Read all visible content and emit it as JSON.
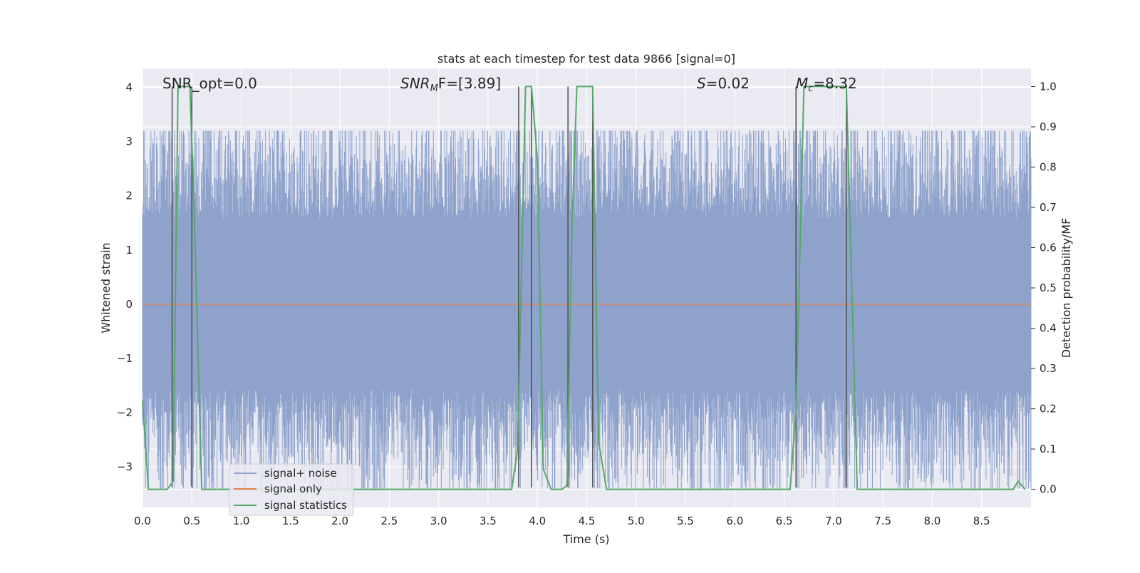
{
  "chart_data": {
    "type": "line",
    "title": "stats at each timestep for test data 9866 [signal=0]",
    "xlabel": "Time (s)",
    "ylabel_left": "Whitened strain",
    "ylabel_right": "Detection probability/MF",
    "xlim": [
      0.0,
      9.0
    ],
    "ylim_left": [
      -3.75,
      4.35
    ],
    "ylim_right": [
      -0.045,
      1.045
    ],
    "x_ticks": [
      "0.0",
      "0.5",
      "1.0",
      "1.5",
      "2.0",
      "2.5",
      "3.0",
      "3.5",
      "4.0",
      "4.5",
      "5.0",
      "5.5",
      "6.0",
      "6.5",
      "7.0",
      "7.5",
      "8.0",
      "8.5"
    ],
    "y_ticks_left": [
      "4",
      "3",
      "2",
      "1",
      "0",
      "−1",
      "−2",
      "−3"
    ],
    "y_ticks_right": [
      "1.0",
      "0.9",
      "0.8",
      "0.7",
      "0.6",
      "0.5",
      "0.4",
      "0.3",
      "0.2",
      "0.1",
      "0.0"
    ],
    "grid": true,
    "annotations": {
      "snr_opt": "SNR_opt=0.0",
      "snr_mf_label": "SNR",
      "snr_mf_sub": "M",
      "snr_mf_tail": "F=[3.89]",
      "s_label": "S",
      "s_value": "=0.02",
      "mc_label": "M",
      "mc_sub": "c",
      "mc_value": "=8.32"
    },
    "legend": {
      "position": "lower-left",
      "entries": [
        "signal+ noise",
        "signal only",
        "signal statistics"
      ]
    },
    "colors": {
      "noise": "#8ea2cc",
      "signal_only": "#dd8452",
      "statistics": "#55a868",
      "vlines": "#4d4d4d",
      "background": "#eaeaf2",
      "grid": "#ffffff"
    },
    "series": [
      {
        "name": "signal+ noise",
        "axis": "left",
        "style": "dense noise, envelope approx −1.7 to 1.8 with spikes up to 3.2",
        "envelope_low": -1.7,
        "envelope_high": 1.8,
        "spike_max": 3.2,
        "spike_min": -3.4
      },
      {
        "name": "signal only",
        "axis": "left",
        "x": [
          0.0,
          9.0
        ],
        "y": [
          0.0,
          0.0
        ]
      },
      {
        "name": "signal statistics",
        "axis": "right",
        "x": [
          0.0,
          0.06,
          0.25,
          0.31,
          0.36,
          0.48,
          0.52,
          0.6,
          3.74,
          3.8,
          3.88,
          3.94,
          4.0,
          4.06,
          4.14,
          4.25,
          4.3,
          4.35,
          4.4,
          4.56,
          4.62,
          4.7,
          6.56,
          6.62,
          6.7,
          7.13,
          7.24,
          8.3,
          8.82,
          8.87,
          8.94
        ],
        "y": [
          0.22,
          0.0,
          0.0,
          0.02,
          1.0,
          1.0,
          0.72,
          0.0,
          0.0,
          0.1,
          1.0,
          1.0,
          0.82,
          0.05,
          0.0,
          0.0,
          0.01,
          0.65,
          1.0,
          1.0,
          0.12,
          0.0,
          0.0,
          0.2,
          1.0,
          1.0,
          0.0,
          0.0,
          0.0,
          0.02,
          0.0
        ]
      }
    ],
    "vertical_lines": [
      0.3,
      0.5,
      3.81,
      3.94,
      4.31,
      4.56,
      6.62,
      7.13
    ],
    "vertical_line_range": [
      -0.045,
      1.0
    ]
  }
}
